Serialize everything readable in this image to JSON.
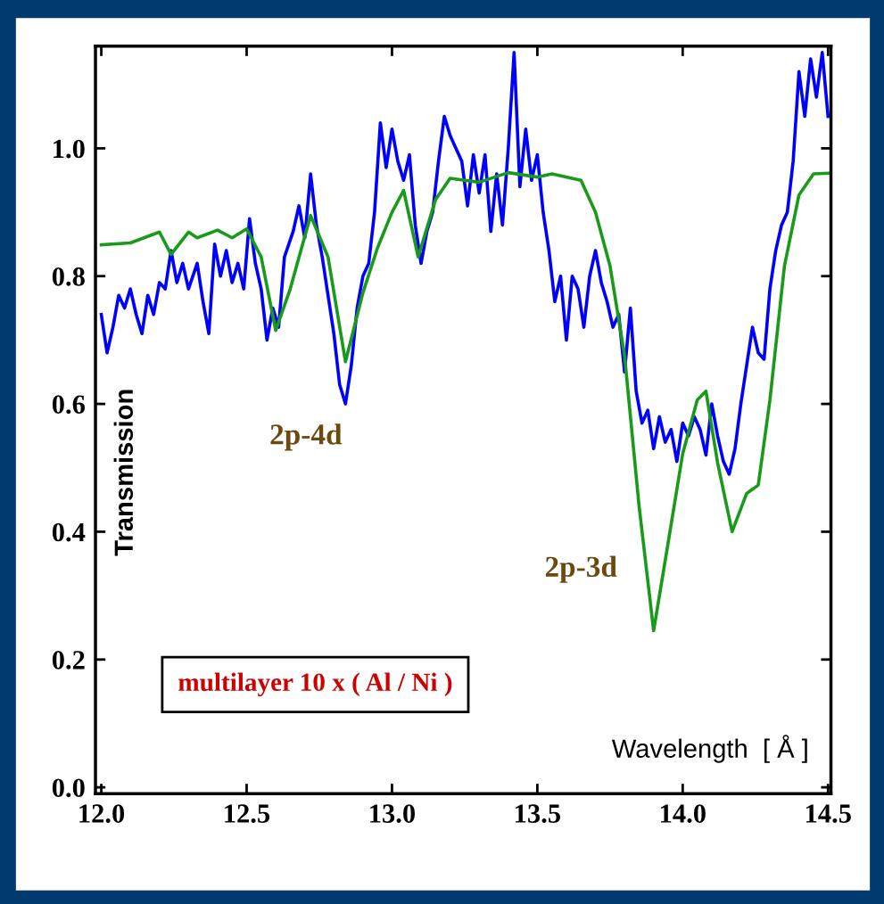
{
  "chart_data": {
    "type": "line",
    "xlabel": "Wavelength  [ Å ]",
    "ylabel": "Transmission",
    "xlim": [
      11.98,
      14.51
    ],
    "ylim": [
      -0.01,
      1.16
    ],
    "xticks": [
      {
        "value": 12.0,
        "label": "12.0"
      },
      {
        "value": 12.5,
        "label": "12.5"
      },
      {
        "value": 13.0,
        "label": "13.0"
      },
      {
        "value": 13.5,
        "label": "13.5"
      },
      {
        "value": 14.0,
        "label": "14.0"
      },
      {
        "value": 14.5,
        "label": "14.5"
      }
    ],
    "yticks": [
      {
        "value": 0.0,
        "label": "0.0"
      },
      {
        "value": 0.2,
        "label": "0.2"
      },
      {
        "value": 0.4,
        "label": "0.4"
      },
      {
        "value": 0.6,
        "label": "0.6"
      },
      {
        "value": 0.8,
        "label": "0.8"
      },
      {
        "value": 1.0,
        "label": "1.0"
      }
    ],
    "grid": false,
    "legend": false,
    "marker": "none",
    "line_style": "solid",
    "annotations": [
      "2p-4d",
      "2p-3d",
      "multilayer 10 x ( Al / Ni )"
    ],
    "series": [
      {
        "color": "#0000ff",
        "x": [
          12.0,
          12.02,
          12.04,
          12.06,
          12.08,
          12.1,
          12.12,
          12.14,
          12.16,
          12.18,
          12.2,
          12.22,
          12.24,
          12.26,
          12.28,
          12.3,
          12.33,
          12.35,
          12.37,
          12.39,
          12.41,
          12.43,
          12.45,
          12.47,
          12.49,
          12.51,
          12.53,
          12.55,
          12.57,
          12.59,
          12.61,
          12.63,
          12.66,
          12.68,
          12.7,
          12.72,
          12.74,
          12.76,
          12.78,
          12.8,
          12.82,
          12.84,
          12.86,
          12.88,
          12.9,
          12.92,
          12.94,
          12.96,
          12.98,
          13.0,
          13.02,
          13.04,
          13.06,
          13.08,
          13.1,
          13.12,
          13.14,
          13.16,
          13.18,
          13.2,
          13.22,
          13.24,
          13.26,
          13.28,
          13.3,
          13.32,
          13.34,
          13.36,
          13.38,
          13.4,
          13.42,
          13.44,
          13.46,
          13.48,
          13.5,
          13.52,
          13.54,
          13.56,
          13.58,
          13.6,
          13.62,
          13.64,
          13.66,
          13.68,
          13.7,
          13.72,
          13.74,
          13.76,
          13.78,
          13.8,
          13.82,
          13.84,
          13.86,
          13.88,
          13.9,
          13.92,
          13.94,
          13.96,
          13.98,
          14.0,
          14.02,
          14.04,
          14.06,
          14.08,
          14.1,
          14.12,
          14.14,
          14.16,
          14.18,
          14.2,
          14.22,
          14.24,
          14.26,
          14.28,
          14.3,
          14.32,
          14.34,
          14.36,
          14.38,
          14.4,
          14.42,
          14.44,
          14.46,
          14.48,
          14.5
        ],
        "values": [
          0.74,
          0.68,
          0.72,
          0.77,
          0.75,
          0.78,
          0.74,
          0.71,
          0.77,
          0.74,
          0.79,
          0.78,
          0.84,
          0.79,
          0.82,
          0.78,
          0.82,
          0.76,
          0.71,
          0.85,
          0.8,
          0.84,
          0.79,
          0.82,
          0.78,
          0.89,
          0.82,
          0.78,
          0.7,
          0.75,
          0.72,
          0.83,
          0.87,
          0.91,
          0.86,
          0.96,
          0.88,
          0.83,
          0.77,
          0.71,
          0.63,
          0.6,
          0.66,
          0.75,
          0.8,
          0.82,
          0.9,
          1.04,
          0.97,
          1.03,
          0.98,
          0.95,
          0.99,
          0.88,
          0.82,
          0.87,
          0.9,
          0.98,
          1.05,
          1.02,
          1.0,
          0.98,
          0.91,
          0.99,
          0.93,
          0.99,
          0.87,
          0.96,
          0.88,
          1.0,
          1.15,
          0.94,
          1.03,
          0.95,
          0.99,
          0.9,
          0.84,
          0.76,
          0.8,
          0.7,
          0.8,
          0.78,
          0.72,
          0.8,
          0.84,
          0.79,
          0.76,
          0.72,
          0.74,
          0.65,
          0.75,
          0.62,
          0.57,
          0.59,
          0.53,
          0.58,
          0.54,
          0.56,
          0.51,
          0.57,
          0.55,
          0.58,
          0.56,
          0.52,
          0.6,
          0.55,
          0.51,
          0.49,
          0.53,
          0.6,
          0.66,
          0.72,
          0.68,
          0.67,
          0.78,
          0.84,
          0.88,
          0.9,
          0.98,
          1.12,
          1.05,
          1.14,
          1.08,
          1.15,
          1.05
        ]
      },
      {
        "color": "#1a9a1a",
        "x": [
          12.0,
          12.1,
          12.2,
          12.24,
          12.3,
          12.33,
          12.4,
          12.45,
          12.5,
          12.55,
          12.6,
          12.65,
          12.72,
          12.78,
          12.84,
          12.9,
          12.95,
          13.0,
          13.04,
          13.09,
          13.15,
          13.2,
          13.3,
          13.4,
          13.5,
          13.55,
          13.65,
          13.7,
          13.75,
          13.8,
          13.85,
          13.9,
          13.95,
          14.0,
          14.05,
          14.08,
          14.12,
          14.17,
          14.22,
          14.26,
          14.3,
          14.35,
          14.4,
          14.45,
          14.5
        ],
        "values": [
          0.849,
          0.852,
          0.869,
          0.834,
          0.869,
          0.86,
          0.872,
          0.86,
          0.874,
          0.83,
          0.715,
          0.78,
          0.895,
          0.83,
          0.666,
          0.774,
          0.844,
          0.9,
          0.934,
          0.83,
          0.92,
          0.953,
          0.947,
          0.962,
          0.955,
          0.96,
          0.95,
          0.9,
          0.816,
          0.676,
          0.44,
          0.245,
          0.383,
          0.522,
          0.606,
          0.62,
          0.508,
          0.4,
          0.46,
          0.473,
          0.606,
          0.816,
          0.927,
          0.96,
          0.961
        ]
      }
    ]
  }
}
